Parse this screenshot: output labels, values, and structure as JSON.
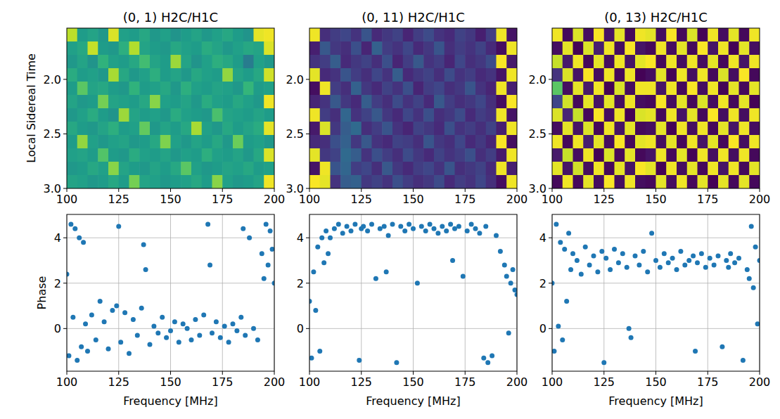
{
  "chart_data": [
    {
      "type": "heatmap",
      "title": "(0, 1) H2C/H1C",
      "ylabel": "Local Sidereal Time",
      "xlim": [
        100,
        200
      ],
      "xticks": [
        100,
        125,
        150,
        175,
        200
      ],
      "ylim": [
        3.0,
        1.53
      ],
      "yticks": [
        {
          "value": 2,
          "label": "2.0"
        },
        2.5,
        {
          "value": 3,
          "label": "3.0"
        }
      ],
      "zlim": [
        -3.14,
        3.14
      ],
      "grid": false,
      "cells": [
        [
          2.5,
          0.3,
          0.5,
          0.2,
          2.8,
          0.4,
          0.3,
          0.6,
          0.2,
          0.4,
          0.1,
          0.3,
          0.5,
          0.2,
          0.4,
          0.6,
          0.3,
          0.1,
          2.9,
          3.0
        ],
        [
          0.4,
          0.6,
          2.6,
          0.3,
          0.2,
          0.8,
          2.4,
          0.5,
          0.3,
          0.2,
          0.6,
          0.4,
          0.3,
          0.7,
          0.5,
          0.2,
          0.4,
          0.6,
          0.5,
          2.8
        ],
        [
          0.2,
          0.5,
          0.1,
          0.9,
          0.4,
          0.3,
          0.6,
          1.2,
          0.5,
          0.3,
          2.2,
          0.5,
          0.1,
          0.4,
          0.8,
          0.6,
          0.3,
          -0.5,
          0.4,
          0.2
        ],
        [
          0.7,
          0.3,
          0.4,
          0.2,
          2.3,
          0.6,
          0.2,
          0.4,
          0.8,
          0.3,
          0.5,
          0.2,
          0.6,
          0.4,
          0.3,
          2.1,
          0.5,
          0.3,
          0.6,
          2.7
        ],
        [
          0.3,
          1.5,
          0.5,
          0.6,
          0.3,
          0.2,
          0.9,
          0.3,
          0.4,
          0.6,
          0.2,
          0.8,
          0.4,
          0.3,
          0.5,
          0.4,
          0.2,
          1.0,
          0.3,
          0.4
        ],
        [
          0.5,
          0.2,
          0.3,
          1.8,
          0.5,
          0.4,
          0.3,
          0.6,
          2.0,
          0.4,
          0.3,
          0.5,
          0.2,
          0.7,
          0.4,
          0.3,
          0.6,
          0.4,
          0.2,
          3.0
        ],
        [
          0.2,
          0.4,
          0.7,
          0.3,
          0.1,
          2.2,
          0.5,
          0.3,
          0.4,
          0.2,
          0.7,
          0.4,
          0.3,
          0.2,
          1.3,
          0.5,
          0.4,
          0.3,
          0.5,
          0.3
        ],
        [
          0.6,
          0.3,
          0.2,
          0.5,
          0.8,
          0.3,
          0.4,
          1.6,
          0.2,
          0.5,
          0.3,
          0.6,
          2.3,
          0.4,
          0.2,
          0.6,
          0.3,
          0.5,
          0.7,
          2.9
        ],
        [
          0.3,
          2.1,
          0.4,
          0.2,
          0.4,
          0.5,
          0.2,
          0.3,
          0.6,
          1.9,
          0.4,
          0.2,
          0.5,
          0.3,
          0.6,
          0.2,
          1.7,
          0.3,
          0.4,
          0.2
        ],
        [
          0.4,
          0.5,
          0.3,
          1.4,
          0.3,
          0.2,
          0.7,
          0.4,
          0.3,
          0.5,
          0.2,
          0.4,
          0.3,
          0.8,
          0.4,
          0.3,
          0.5,
          0.2,
          0.6,
          2.8
        ],
        [
          0.2,
          0.3,
          0.6,
          0.4,
          2.0,
          0.5,
          0.3,
          0.2,
          0.5,
          0.3,
          0.6,
          1.5,
          0.4,
          0.2,
          0.3,
          0.5,
          0.4,
          0.6,
          0.3,
          0.4
        ],
        [
          0.5,
          0.4,
          0.2,
          0.3,
          0.6,
          0.3,
          1.8,
          0.5,
          0.4,
          0.2,
          0.3,
          0.4,
          0.6,
          0.3,
          2.0,
          0.4,
          0.2,
          0.3,
          0.5,
          3.0
        ]
      ]
    },
    {
      "type": "heatmap",
      "title": "(0, 11) H2C/H1C",
      "xlim": [
        100,
        200
      ],
      "xticks": [
        100,
        125,
        150,
        175,
        200
      ],
      "ylim": [
        3.0,
        1.53
      ],
      "yticks": [
        {
          "value": 2,
          "label": "2.0"
        },
        2.5,
        {
          "value": 3,
          "label": "3.0"
        }
      ],
      "zlim": [
        -3.14,
        3.14
      ],
      "grid": false,
      "cells": [
        [
          3.0,
          -2.3,
          -2.0,
          -1.8,
          -2.2,
          -1.5,
          -2.4,
          -2.1,
          -1.9,
          -2.5,
          -2.0,
          -1.7,
          -2.2,
          -2.4,
          -1.9,
          -2.1,
          -2.6,
          -2.0,
          3.0,
          -2.8
        ],
        [
          -2.6,
          -1.4,
          -2.1,
          -2.3,
          -1.6,
          -2.5,
          -1.2,
          -2.0,
          -2.2,
          -1.8,
          -2.4,
          -2.1,
          -1.5,
          -2.3,
          -2.0,
          -2.2,
          -1.9,
          -2.4,
          -2.9,
          3.0
        ],
        [
          -2.2,
          -2.0,
          -1.3,
          -2.4,
          -2.1,
          -1.9,
          -2.3,
          -1.6,
          -2.5,
          -2.0,
          -1.4,
          -2.2,
          -2.0,
          -2.5,
          -1.8,
          -2.3,
          -2.1,
          -1.7,
          3.1,
          -2.7
        ],
        [
          2.9,
          -2.4,
          -2.2,
          -1.5,
          -2.0,
          -2.3,
          -1.8,
          -2.2,
          -1.3,
          -2.4,
          -2.1,
          -1.9,
          -2.3,
          -1.7,
          -2.2,
          -2.0,
          -2.4,
          -2.2,
          -2.8,
          3.0
        ],
        [
          -2.9,
          3.0,
          -2.0,
          -2.3,
          -1.2,
          -2.1,
          -2.4,
          -1.9,
          -2.2,
          -1.6,
          -2.5,
          -2.0,
          -1.8,
          -2.3,
          -2.1,
          -1.5,
          -2.2,
          -2.5,
          3.0,
          -2.6
        ],
        [
          -2.5,
          -2.2,
          -1.4,
          -2.1,
          -2.4,
          -1.3,
          -2.0,
          -2.3,
          -1.7,
          -2.2,
          -1.9,
          -2.4,
          -1.4,
          -2.0,
          -2.3,
          -2.1,
          -1.8,
          -2.3,
          -2.9,
          3.1
        ],
        [
          3.0,
          -2.0,
          -2.3,
          -1.1,
          -2.2,
          -1.9,
          -1.4,
          -2.1,
          -2.4,
          -1.8,
          -2.2,
          -1.6,
          -2.3,
          -2.1,
          -1.7,
          -2.4,
          -2.0,
          -2.2,
          3.0,
          -2.8
        ],
        [
          -2.7,
          2.8,
          -2.1,
          -1.3,
          -1.0,
          -2.3,
          -2.0,
          -1.5,
          -2.2,
          -2.5,
          -1.9,
          -2.1,
          -2.4,
          -1.6,
          -2.2,
          -2.0,
          -2.3,
          -1.9,
          -2.6,
          3.0
        ],
        [
          -2.4,
          -2.3,
          -1.6,
          -1.2,
          -2.1,
          -1.4,
          -2.2,
          -2.4,
          -1.9,
          -2.0,
          -2.3,
          -1.5,
          -2.1,
          -2.3,
          -1.8,
          -2.4,
          -2.1,
          -2.5,
          3.1,
          -2.9
        ],
        [
          2.9,
          -2.1,
          -1.9,
          -1.0,
          -1.3,
          -2.2,
          -1.6,
          -2.0,
          -2.3,
          -1.7,
          -2.1,
          -2.4,
          -1.9,
          -2.2,
          -2.0,
          -1.6,
          -2.3,
          -2.0,
          -2.7,
          3.0
        ],
        [
          -2.8,
          3.0,
          -1.5,
          -1.1,
          -2.0,
          -1.8,
          -2.3,
          -1.4,
          -2.1,
          -2.4,
          -2.0,
          -1.8,
          -2.2,
          -1.5,
          -2.3,
          -2.1,
          -1.9,
          -2.4,
          3.0,
          -2.6
        ],
        [
          3.1,
          2.9,
          -2.2,
          -1.3,
          -1.2,
          -2.1,
          -1.9,
          -2.2,
          -1.6,
          -2.0,
          -2.3,
          -2.1,
          -1.7,
          -2.4,
          -2.0,
          -2.2,
          -1.8,
          -2.3,
          -2.9,
          3.0
        ]
      ]
    },
    {
      "type": "heatmap",
      "title": "(0, 13) H2C/H1C",
      "xlim": [
        100,
        200
      ],
      "xticks": [
        100,
        125,
        150,
        175,
        200
      ],
      "ylim": [
        3.0,
        1.53
      ],
      "yticks": [
        {
          "value": 2,
          "label": "2.0"
        },
        2.5,
        {
          "value": 3,
          "label": "3.0"
        }
      ],
      "zlim": [
        -3.14,
        3.14
      ],
      "grid": false,
      "cells": [
        [
          3.0,
          -3.0,
          2.8,
          -2.9,
          3.1,
          -2.8,
          2.9,
          -3.0,
          3.0,
          2.9,
          -2.9,
          3.1,
          -3.0,
          2.8,
          -3.1,
          3.0,
          -2.9,
          2.9,
          -3.0,
          3.0
        ],
        [
          -2.9,
          2.9,
          -3.1,
          2.8,
          -2.6,
          3.0,
          -2.9,
          3.1,
          -2.8,
          -3.0,
          3.0,
          -2.9,
          2.9,
          -3.0,
          3.1,
          -2.8,
          3.0,
          -3.1,
          2.9,
          -2.9
        ],
        [
          2.6,
          -2.7,
          3.0,
          -3.0,
          2.9,
          -2.9,
          3.0,
          -2.8,
          2.9,
          3.1,
          -3.0,
          3.0,
          -2.9,
          3.0,
          -2.9,
          2.9,
          -3.0,
          3.0,
          -2.8,
          3.0
        ],
        [
          -2.2,
          2.8,
          -2.8,
          3.1,
          -2.9,
          3.0,
          -3.0,
          3.0,
          -3.1,
          -2.9,
          2.9,
          -3.1,
          3.0,
          -2.9,
          3.0,
          -3.0,
          2.8,
          -2.9,
          3.1,
          -3.0
        ],
        [
          1.5,
          -2.9,
          2.9,
          -2.7,
          3.0,
          -3.1,
          2.8,
          -2.9,
          3.0,
          3.0,
          -2.8,
          3.0,
          -3.0,
          3.1,
          -2.9,
          3.0,
          -3.1,
          2.9,
          -3.0,
          2.9
        ],
        [
          -1.8,
          2.7,
          -3.0,
          2.9,
          -2.8,
          2.9,
          -2.9,
          3.0,
          -2.9,
          -3.0,
          3.1,
          -2.9,
          2.9,
          -3.0,
          2.8,
          -2.9,
          3.0,
          -3.0,
          2.9,
          -3.1
        ],
        [
          2.8,
          -2.5,
          2.6,
          -3.0,
          3.1,
          -2.9,
          3.0,
          -3.1,
          2.8,
          2.9,
          -3.0,
          3.0,
          -2.8,
          2.9,
          -3.0,
          3.1,
          -2.9,
          3.0,
          -2.9,
          3.0
        ],
        [
          -2.9,
          2.9,
          -2.8,
          2.8,
          -3.0,
          3.0,
          -2.8,
          2.9,
          -3.0,
          -2.9,
          2.9,
          -3.1,
          3.0,
          -2.9,
          3.0,
          -3.0,
          2.9,
          -2.8,
          3.0,
          -2.9
        ],
        [
          3.0,
          -3.0,
          3.0,
          -2.6,
          2.9,
          -2.9,
          3.1,
          -3.0,
          2.9,
          3.0,
          -2.9,
          2.9,
          -3.0,
          3.0,
          -2.8,
          2.9,
          -3.0,
          3.1,
          -2.9,
          3.0
        ],
        [
          -2.7,
          2.6,
          -2.9,
          3.0,
          -3.1,
          2.8,
          -3.0,
          2.9,
          -3.0,
          -2.8,
          3.0,
          -3.0,
          2.9,
          -3.1,
          3.0,
          -2.9,
          3.0,
          -2.9,
          3.0,
          -3.0
        ],
        [
          2.9,
          -2.8,
          2.7,
          -2.9,
          3.0,
          -3.0,
          2.9,
          -2.8,
          3.1,
          2.9,
          -3.1,
          3.0,
          -2.9,
          2.9,
          -3.0,
          3.0,
          -2.8,
          3.0,
          -3.0,
          2.9
        ],
        [
          -3.0,
          3.0,
          -3.0,
          2.9,
          -2.9,
          3.1,
          -2.9,
          3.0,
          -2.9,
          -3.0,
          2.9,
          -2.9,
          3.0,
          -3.0,
          2.9,
          -3.1,
          2.9,
          -3.0,
          2.9,
          -3.0
        ]
      ]
    },
    {
      "type": "scatter",
      "ylabel": "Phase",
      "xlabel": "Frequency [MHz]",
      "xlim": [
        100,
        200
      ],
      "xticks": [
        100,
        125,
        150,
        175,
        200
      ],
      "ylim": [
        -1.88,
        5.03
      ],
      "yticks": [
        0,
        2,
        4
      ],
      "grid": true,
      "color": "#1f77b4",
      "marker": "circle",
      "x": [
        100,
        101,
        102,
        103,
        104,
        105,
        106,
        107,
        108,
        109,
        110,
        112,
        114,
        116,
        118,
        120,
        122,
        124,
        125,
        126,
        128,
        130,
        132,
        134,
        136,
        137,
        138,
        140,
        142,
        144,
        146,
        148,
        150,
        152,
        154,
        156,
        158,
        160,
        162,
        164,
        166,
        168,
        169,
        170,
        172,
        174,
        176,
        178,
        180,
        182,
        184,
        185,
        186,
        188,
        190,
        192,
        194,
        195,
        196,
        197,
        198,
        199,
        200
      ],
      "values": [
        2.4,
        -1.2,
        4.6,
        0.5,
        4.4,
        -1.4,
        4.0,
        -0.8,
        3.8,
        0.2,
        -1.0,
        0.6,
        -0.5,
        1.2,
        0.3,
        -0.9,
        0.8,
        1.0,
        4.5,
        -0.6,
        0.7,
        -1.1,
        0.4,
        -0.3,
        0.9,
        3.7,
        2.6,
        -0.7,
        0.1,
        -0.2,
        0.5,
        -0.4,
        -0.1,
        0.3,
        -0.6,
        0.2,
        0.0,
        -0.5,
        0.4,
        -0.3,
        0.6,
        4.6,
        2.8,
        -0.2,
        0.3,
        -0.4,
        0.1,
        -0.6,
        0.2,
        -0.1,
        0.5,
        4.4,
        -0.3,
        4.0,
        0.0,
        -0.5,
        3.3,
        2.2,
        4.6,
        2.8,
        4.3,
        3.5,
        2.0
      ]
    },
    {
      "type": "scatter",
      "xlabel": "Frequency [MHz]",
      "xlim": [
        100,
        200
      ],
      "xticks": [
        100,
        125,
        150,
        175,
        200
      ],
      "ylim": [
        -1.88,
        5.03
      ],
      "yticks": [
        0,
        2,
        4
      ],
      "grid": true,
      "color": "#1f77b4",
      "marker": "circle",
      "x": [
        100,
        101,
        102,
        103,
        104,
        105,
        106,
        107,
        108,
        109,
        110,
        112,
        114,
        116,
        118,
        120,
        122,
        124,
        125,
        126,
        128,
        130,
        132,
        134,
        136,
        137,
        138,
        140,
        142,
        144,
        146,
        148,
        150,
        152,
        154,
        156,
        158,
        160,
        162,
        164,
        166,
        168,
        169,
        170,
        172,
        174,
        176,
        178,
        180,
        182,
        184,
        185,
        186,
        188,
        190,
        192,
        194,
        195,
        196,
        197,
        198,
        199,
        200
      ],
      "values": [
        1.2,
        -1.3,
        2.5,
        0.8,
        3.6,
        -1.0,
        4.0,
        2.9,
        4.3,
        3.3,
        4.0,
        4.4,
        4.6,
        4.2,
        4.5,
        4.3,
        4.6,
        -1.4,
        4.4,
        4.5,
        4.3,
        4.6,
        2.2,
        4.4,
        4.5,
        2.5,
        4.1,
        4.6,
        -1.5,
        4.5,
        4.3,
        4.6,
        4.4,
        2.0,
        4.5,
        4.3,
        4.6,
        4.4,
        4.2,
        4.5,
        4.3,
        4.6,
        3.0,
        4.4,
        4.5,
        2.3,
        4.3,
        4.6,
        4.4,
        4.2,
        -1.3,
        4.5,
        -1.5,
        -1.2,
        4.1,
        3.4,
        2.8,
        2.3,
        -0.2,
        2.0,
        2.6,
        1.7,
        1.5
      ]
    },
    {
      "type": "scatter",
      "xlabel": "Frequency [MHz]",
      "xlim": [
        100,
        200
      ],
      "xticks": [
        100,
        125,
        150,
        175,
        200
      ],
      "ylim": [
        -1.88,
        5.03
      ],
      "yticks": [
        0,
        2,
        4
      ],
      "grid": true,
      "color": "#1f77b4",
      "marker": "circle",
      "x": [
        100,
        101,
        102,
        103,
        104,
        105,
        106,
        107,
        108,
        109,
        110,
        112,
        114,
        116,
        118,
        120,
        122,
        124,
        125,
        126,
        128,
        130,
        132,
        134,
        136,
        137,
        138,
        140,
        142,
        144,
        146,
        148,
        150,
        152,
        154,
        156,
        158,
        160,
        162,
        164,
        166,
        168,
        169,
        170,
        172,
        174,
        176,
        178,
        180,
        182,
        184,
        185,
        186,
        188,
        190,
        192,
        194,
        195,
        196,
        197,
        198,
        199,
        200
      ],
      "values": [
        2.0,
        -1.0,
        4.6,
        0.1,
        3.8,
        -0.5,
        3.5,
        1.2,
        4.2,
        2.6,
        3.3,
        3.0,
        2.4,
        3.6,
        2.8,
        3.2,
        2.5,
        3.4,
        -1.5,
        3.1,
        2.6,
        3.5,
        2.9,
        3.3,
        2.7,
        0.0,
        -0.4,
        3.2,
        2.8,
        3.4,
        2.5,
        4.2,
        3.0,
        2.7,
        3.3,
        2.9,
        3.1,
        2.6,
        3.4,
        2.8,
        3.0,
        3.2,
        -1.0,
        2.9,
        3.3,
        2.7,
        3.1,
        2.8,
        3.2,
        -0.8,
        3.0,
        2.7,
        3.3,
        2.9,
        3.1,
        -1.4,
        2.6,
        2.2,
        4.5,
        1.8,
        3.6,
        0.2,
        3.0
      ]
    }
  ]
}
